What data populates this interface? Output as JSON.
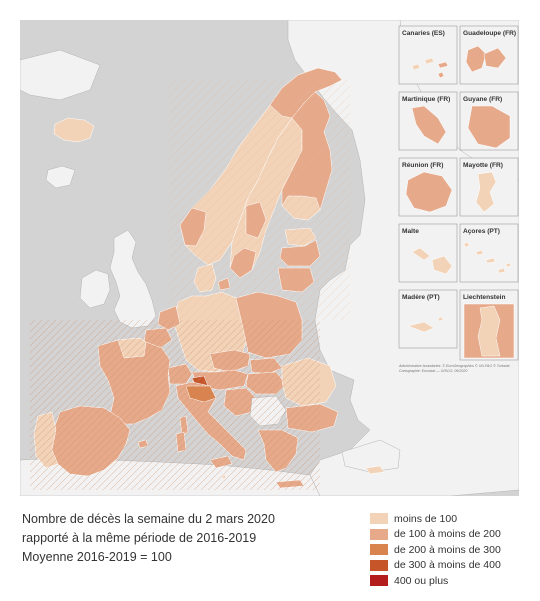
{
  "colors": {
    "sea": "#d3d3d3",
    "land_outside": "#f2f2f2",
    "border": "#b3b3b3",
    "c1": "#f2d3b8",
    "c2": "#e6a98a",
    "c3": "#d9844f",
    "c4": "#c7552a",
    "c5": "#b41d1d"
  },
  "caption": {
    "line1": "Nombre de décès la semaine du 2 mars 2020",
    "line2": "rapporté à la même période de 2016-2019",
    "line3": "Moyenne 2016-2019 = 100"
  },
  "legend": {
    "items": [
      {
        "label": "moins de 100",
        "color": "#f2d3b8"
      },
      {
        "label": "de 100 à moins de 200",
        "color": "#e6a98a"
      },
      {
        "label": "de 200 à moins de 300",
        "color": "#d9844f"
      },
      {
        "label": "de 300 à moins de 400",
        "color": "#c7552a"
      },
      {
        "label": "400 ou plus",
        "color": "#b41d1d"
      }
    ]
  },
  "insets": [
    {
      "title": "Canaries (ES)"
    },
    {
      "title": "Guadeloupe (FR)"
    },
    {
      "title": "Martinique (FR)"
    },
    {
      "title": "Guyane (FR)"
    },
    {
      "title": "Réunion (FR)"
    },
    {
      "title": "Mayotte (FR)"
    },
    {
      "title": "Malte"
    },
    {
      "title": "Açores (PT)"
    },
    {
      "title": "Madère (PT)"
    },
    {
      "title": "Liechtenstein"
    }
  ],
  "credits": {
    "line1": "Administrative boundaries: © EuroGeographics © UN-FAO © Turkstat",
    "line2": "Cartographie: Eurostat — GISCO, 06/2020"
  }
}
